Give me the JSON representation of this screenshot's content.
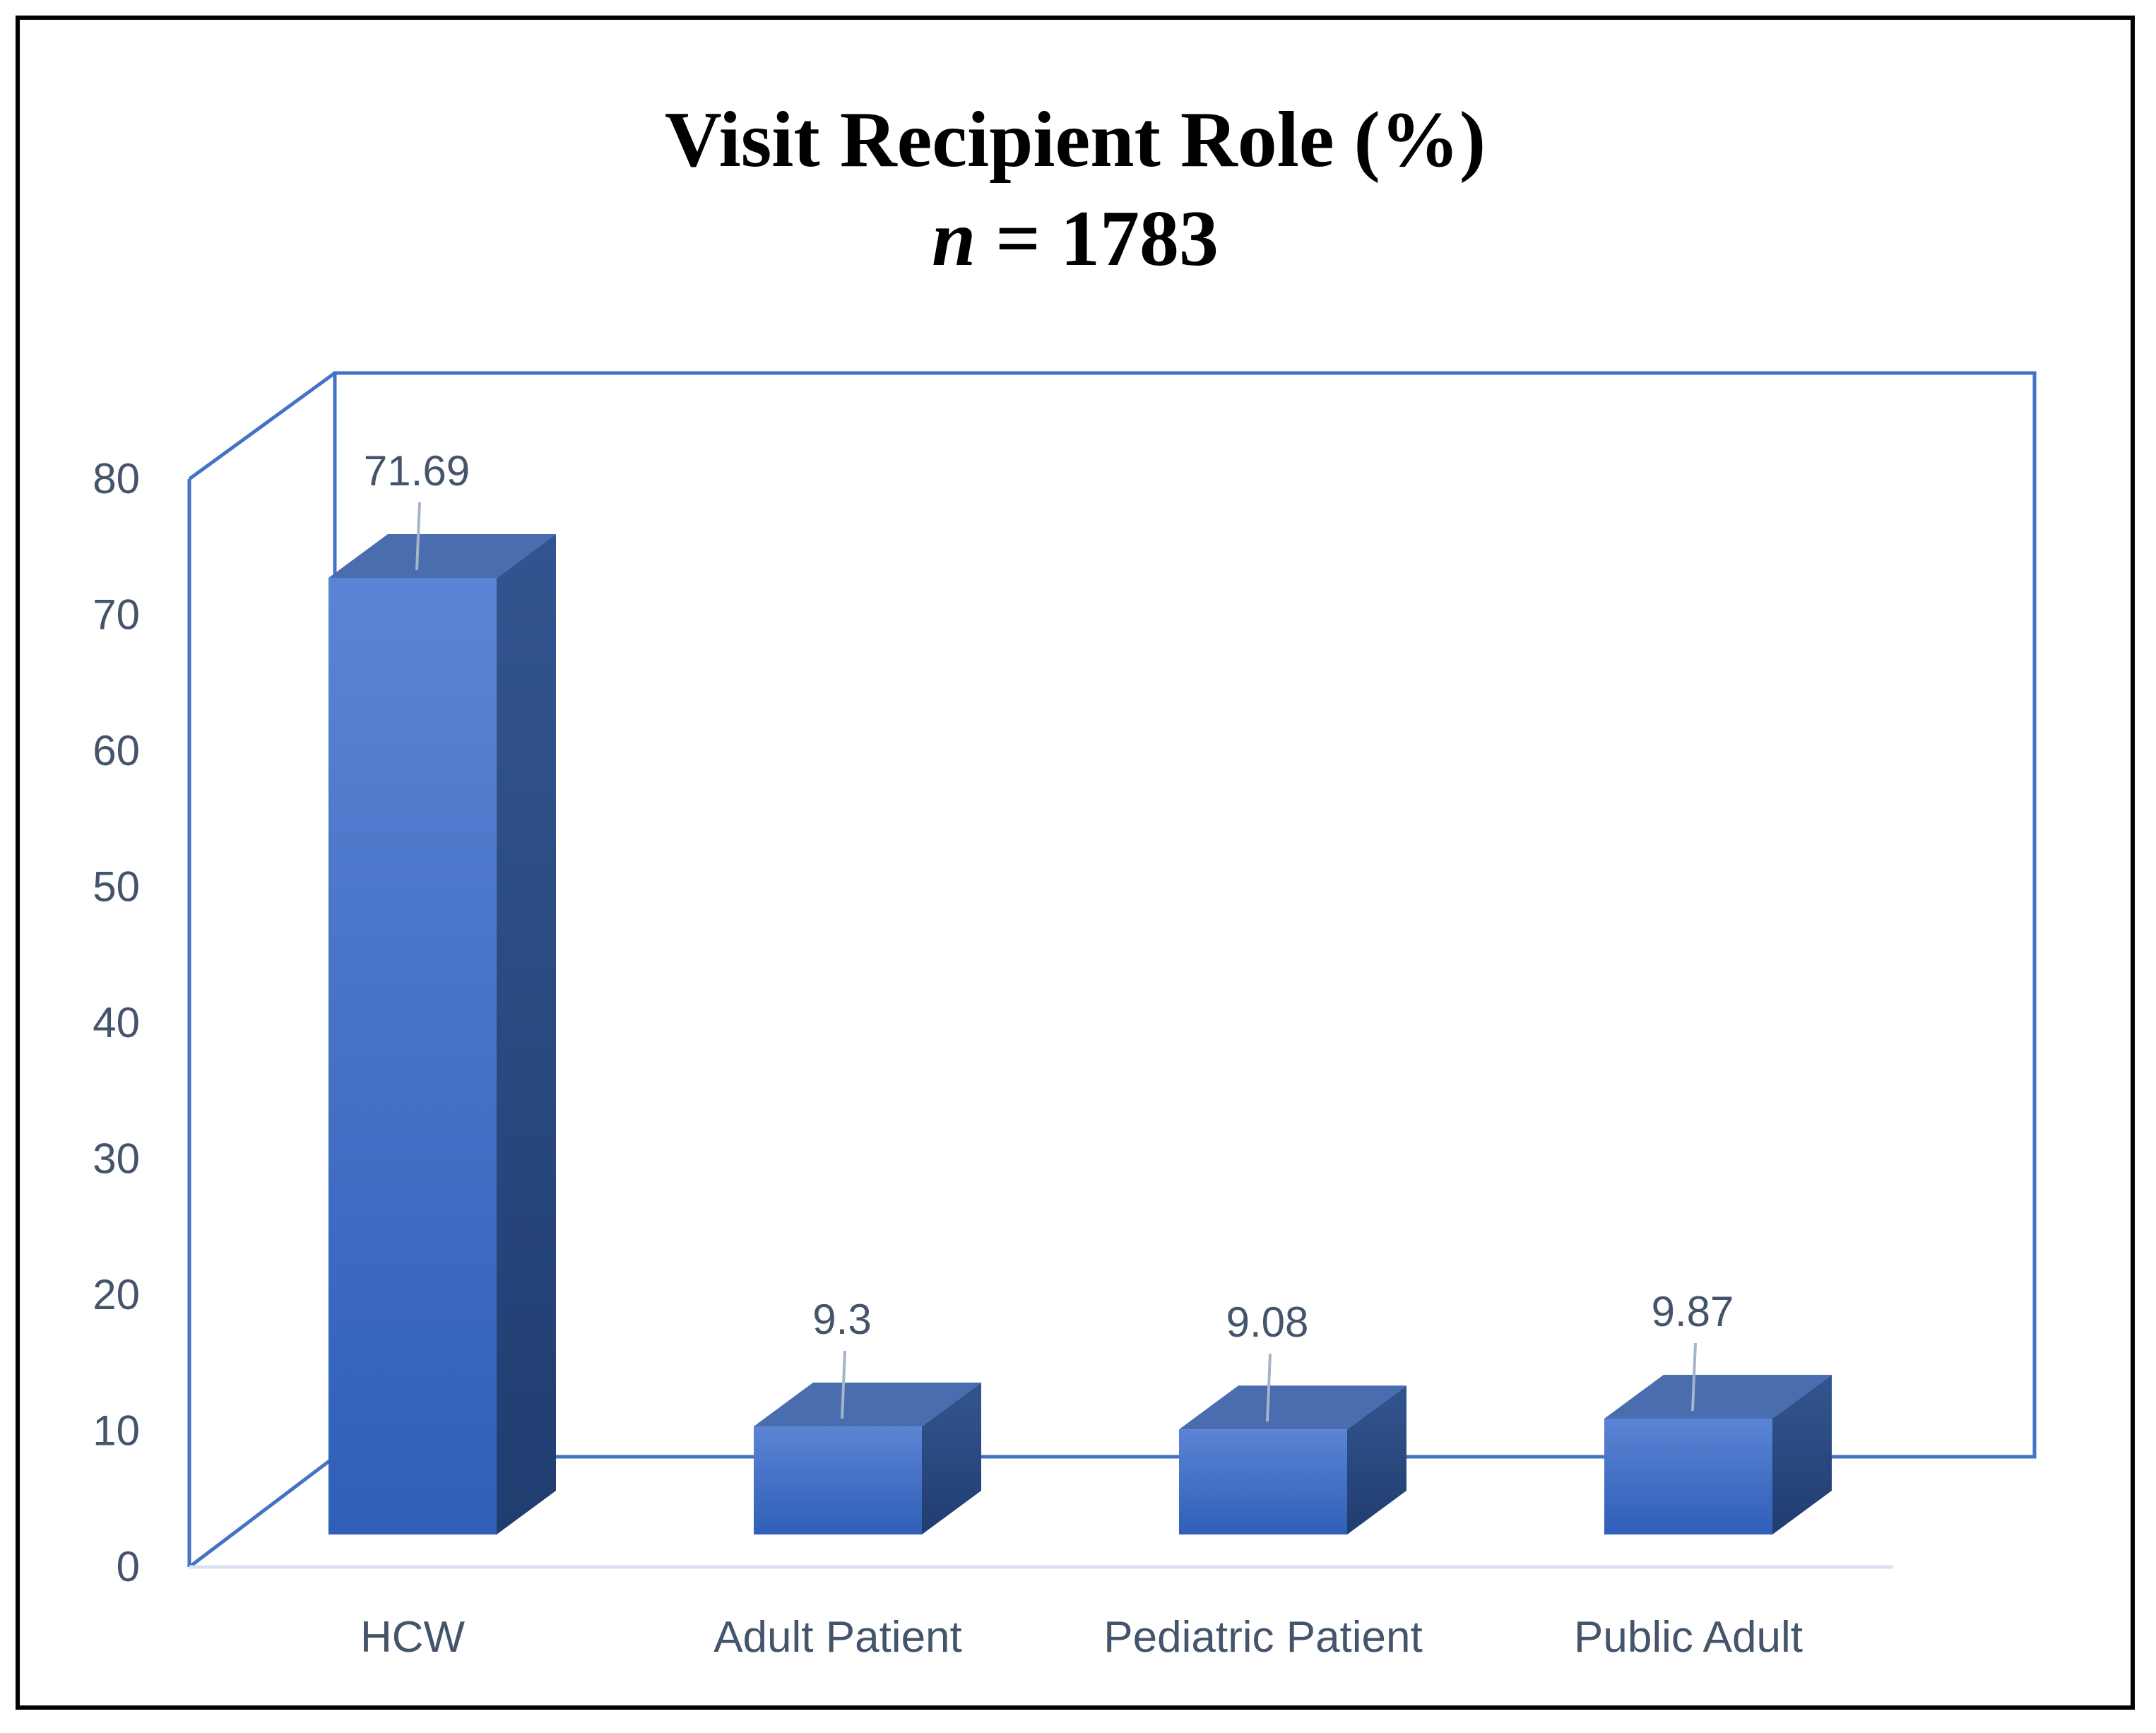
{
  "title": {
    "line1": "Visit Recipient Role (%)",
    "n_symbol": "n",
    "n_rest": " = 1783"
  },
  "chart_data": {
    "type": "bar",
    "style": "3d-column",
    "categories": [
      "HCW",
      "Adult Patient",
      "Pediatric Patient",
      "Public Adult"
    ],
    "values": [
      71.69,
      9.3,
      9.08,
      9.87
    ],
    "data_labels": [
      "71.69",
      "9.3",
      "9.08",
      "9.87"
    ],
    "title": "Visit Recipient Role (%) n = 1783",
    "xlabel": "",
    "ylabel": "",
    "ylim": [
      0,
      80
    ],
    "yticks": [
      0,
      10,
      20,
      30,
      40,
      50,
      60,
      70,
      80
    ],
    "grid": false,
    "legend": "none",
    "colors": {
      "bar_front_top": "#5b84d4",
      "bar_front_bottom": "#2f5fb8",
      "bar_side": "#27467f",
      "bar_top": "#4a6db0",
      "axis_frame": "#4472c4",
      "floor_line": "#d9e1f2",
      "leader_line": "#a6b4c8",
      "text": "#44546a"
    }
  }
}
